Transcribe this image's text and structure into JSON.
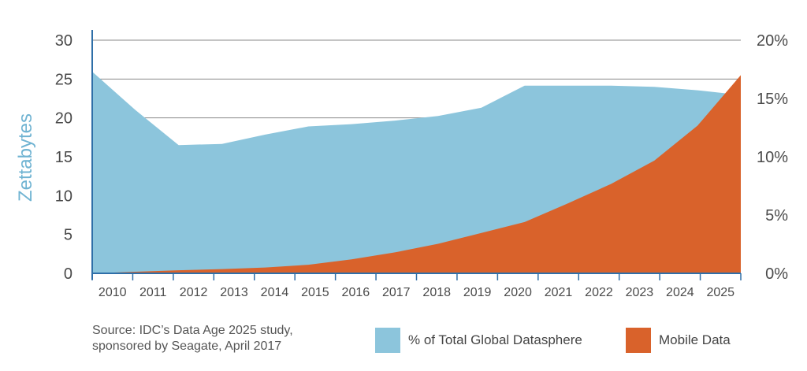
{
  "chart_data": {
    "type": "area",
    "x": [
      "2010",
      "2011",
      "2012",
      "2013",
      "2014",
      "2015",
      "2016",
      "2017",
      "2018",
      "2019",
      "2020",
      "2021",
      "2022",
      "2023",
      "2024",
      "2025"
    ],
    "ylabel": "Zettabytes",
    "ylim": [
      0,
      30
    ],
    "yticks": [
      "0",
      "5",
      "10",
      "15",
      "20",
      "25",
      "30"
    ],
    "y2lim": [
      0,
      20
    ],
    "y2ticks": [
      "0%",
      "5%",
      "10%",
      "15%",
      "20%"
    ],
    "grid": true,
    "series": [
      {
        "name": "% of Total Global Datasphere",
        "axis": "right",
        "unit": "percent",
        "color": "#8cc5dc",
        "values": [
          17.3,
          14.0,
          11.0,
          11.1,
          11.9,
          12.6,
          12.8,
          13.1,
          13.5,
          14.2,
          16.1,
          16.1,
          16.1,
          16.0,
          15.7,
          15.3
        ]
      },
      {
        "name": "Mobile Data",
        "axis": "left",
        "unit": "zettabytes",
        "color": "#d9622b",
        "values": [
          0.0,
          0.2,
          0.4,
          0.55,
          0.75,
          1.1,
          1.8,
          2.7,
          3.8,
          5.2,
          6.6,
          9.0,
          11.5,
          14.5,
          19.0,
          25.5
        ]
      }
    ],
    "legend_placement": "bottom"
  },
  "source_text": {
    "line1": "Source: IDC’s Data Age 2025 study,",
    "line2": "sponsored by Seagate, April 2017"
  },
  "legend": {
    "items": [
      {
        "label": "% of Total Global Datasphere",
        "color": "#8cc5dc"
      },
      {
        "label": "Mobile Data",
        "color": "#d9622b"
      }
    ]
  }
}
